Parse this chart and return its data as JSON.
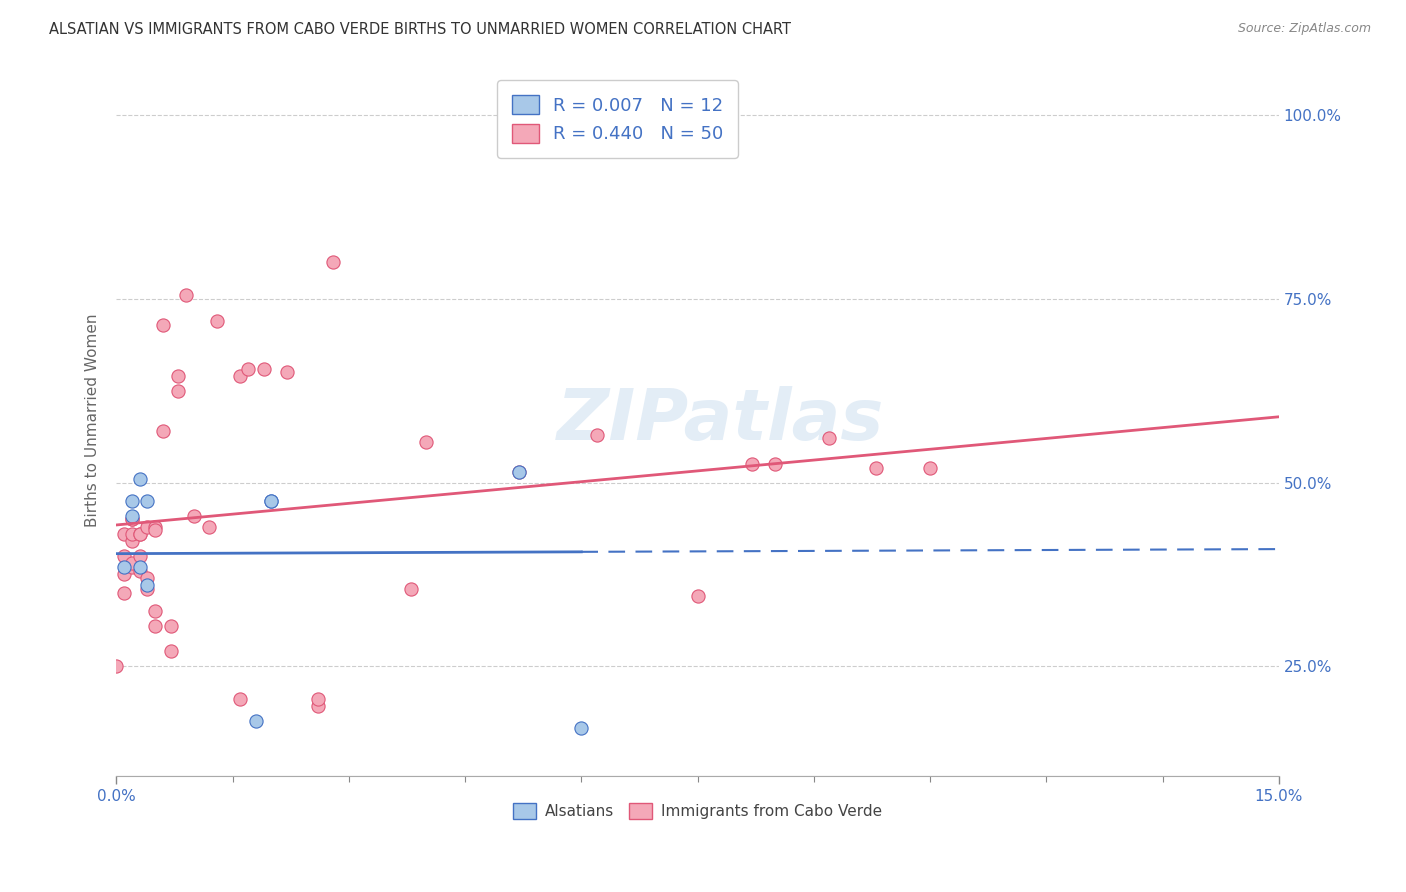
{
  "title": "ALSATIAN VS IMMIGRANTS FROM CABO VERDE BIRTHS TO UNMARRIED WOMEN CORRELATION CHART",
  "source": "Source: ZipAtlas.com",
  "ylabel": "Births to Unmarried Women",
  "ytick_labels": [
    "25.0%",
    "50.0%",
    "75.0%",
    "100.0%"
  ],
  "ytick_values": [
    0.25,
    0.5,
    0.75,
    1.0
  ],
  "xlim": [
    0.0,
    0.15
  ],
  "ylim": [
    0.1,
    1.07
  ],
  "alsatian_R": "0.007",
  "alsatian_N": "12",
  "caboverde_R": "0.440",
  "caboverde_N": "50",
  "alsatian_color": "#a8c8e8",
  "caboverde_color": "#f4a8b8",
  "trendline_alsatian_color": "#4472c4",
  "trendline_caboverde_color": "#e05878",
  "legend_text_color": "#4472c4",
  "watermark": "ZIPatlas",
  "alsatian_points_x": [
    0.001,
    0.002,
    0.002,
    0.003,
    0.003,
    0.004,
    0.004,
    0.018,
    0.02,
    0.02,
    0.052,
    0.06
  ],
  "alsatian_points_y": [
    0.385,
    0.475,
    0.455,
    0.385,
    0.505,
    0.36,
    0.475,
    0.175,
    0.475,
    0.475,
    0.515,
    0.165
  ],
  "caboverde_points_x": [
    0.0,
    0.001,
    0.001,
    0.001,
    0.001,
    0.002,
    0.002,
    0.002,
    0.002,
    0.002,
    0.002,
    0.003,
    0.003,
    0.003,
    0.003,
    0.004,
    0.004,
    0.004,
    0.005,
    0.005,
    0.005,
    0.005,
    0.006,
    0.006,
    0.007,
    0.007,
    0.008,
    0.008,
    0.009,
    0.01,
    0.012,
    0.013,
    0.016,
    0.016,
    0.017,
    0.019,
    0.022,
    0.026,
    0.026,
    0.028,
    0.038,
    0.04,
    0.052,
    0.062,
    0.075,
    0.082,
    0.085,
    0.092,
    0.098,
    0.105
  ],
  "caboverde_points_y": [
    0.25,
    0.35,
    0.375,
    0.4,
    0.43,
    0.385,
    0.39,
    0.42,
    0.43,
    0.45,
    0.45,
    0.38,
    0.4,
    0.43,
    0.43,
    0.355,
    0.37,
    0.44,
    0.305,
    0.325,
    0.44,
    0.435,
    0.57,
    0.715,
    0.27,
    0.305,
    0.625,
    0.645,
    0.755,
    0.455,
    0.44,
    0.72,
    0.205,
    0.645,
    0.655,
    0.655,
    0.65,
    0.195,
    0.205,
    0.8,
    0.355,
    0.555,
    0.515,
    0.565,
    0.345,
    0.525,
    0.525,
    0.56,
    0.52,
    0.52
  ],
  "background_color": "#ffffff",
  "grid_color": "#c8c8c8",
  "xtick_minor_vals": [
    0.0,
    0.015,
    0.03,
    0.045,
    0.06,
    0.075,
    0.09,
    0.105,
    0.12,
    0.135,
    0.15
  ]
}
